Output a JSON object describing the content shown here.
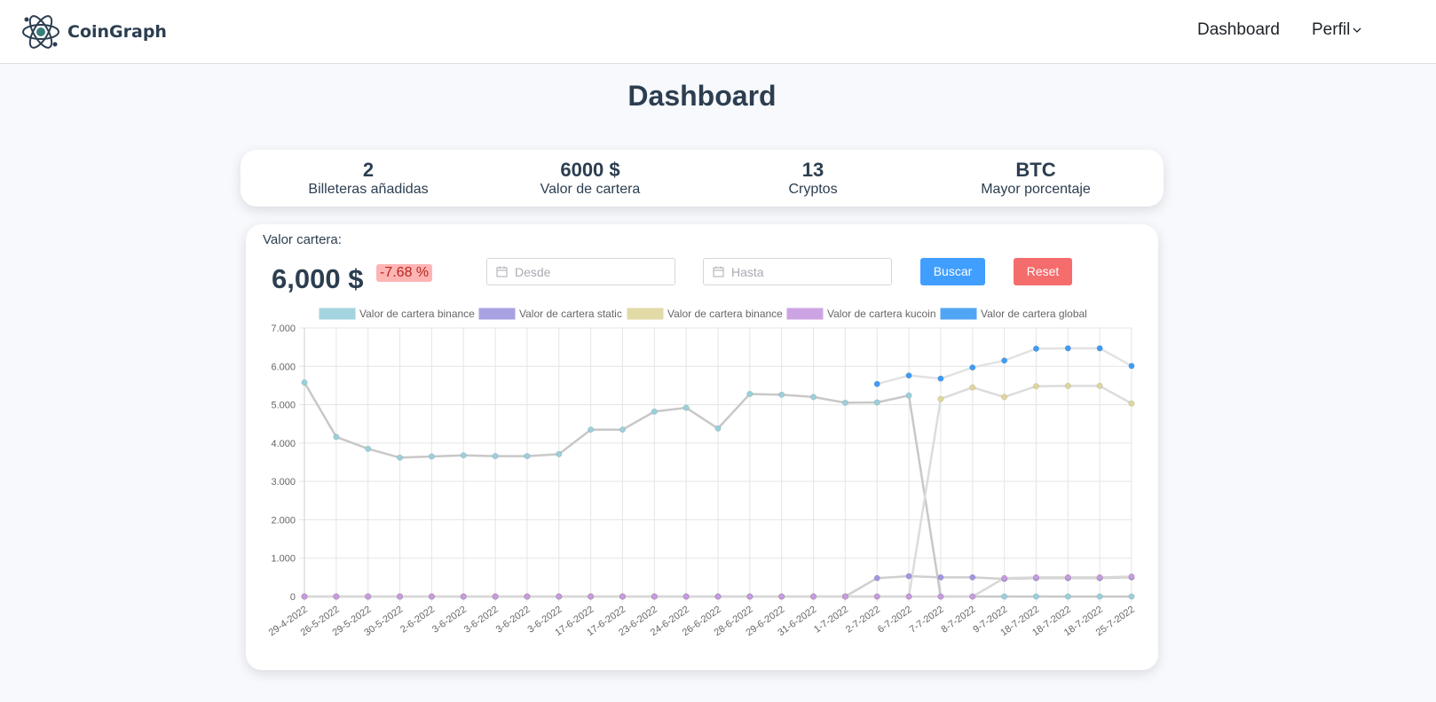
{
  "nav": {
    "brand": "CoinGraph",
    "dashboard": "Dashboard",
    "perfil": "Perfil"
  },
  "page": {
    "title": "Dashboard"
  },
  "stats": [
    {
      "value": "2",
      "label": "Billeteras añadidas"
    },
    {
      "value": "6000 $",
      "label": "Valor de cartera"
    },
    {
      "value": "13",
      "label": "Cryptos"
    },
    {
      "value": "BTC",
      "label": "Mayor porcentaje"
    }
  ],
  "wallet": {
    "label": "Valor cartera:",
    "value": "6,000 $",
    "change": "-7.68 %"
  },
  "filters": {
    "desde_placeholder": "Desde",
    "hasta_placeholder": "Hasta",
    "buscar": "Buscar",
    "reset": "Reset"
  },
  "chart_data": {
    "type": "line",
    "ylim": [
      0,
      7000
    ],
    "yticks": [
      0,
      1000,
      2000,
      3000,
      4000,
      5000,
      6000,
      7000
    ],
    "ytick_labels": [
      "0",
      "1.000",
      "2.000",
      "3.000",
      "4.000",
      "5.000",
      "6.000",
      "7.000"
    ],
    "categories": [
      "29-4-2022",
      "26-5-2022",
      "29-5-2022",
      "30-5-2022",
      "2-6-2022",
      "3-6-2022",
      "3-6-2022",
      "3-6-2022",
      "3-6-2022",
      "17-6-2022",
      "17-6-2022",
      "23-6-2022",
      "24-6-2022",
      "26-6-2022",
      "28-6-2022",
      "29-6-2022",
      "31-6-2022",
      "1-7-2022",
      "2-7-2022",
      "6-7-2022",
      "7-7-2022",
      "8-7-2022",
      "9-7-2022",
      "18-7-2022",
      "18-7-2022",
      "18-7-2022",
      "25-7-2022"
    ],
    "series": [
      {
        "name": "Valor de cartera binance",
        "color": "#9ad0dc",
        "values": [
          5580,
          4160,
          3850,
          3620,
          3650,
          3680,
          3660,
          3660,
          3710,
          4350,
          4350,
          4820,
          4920,
          4380,
          5280,
          5260,
          5200,
          5050,
          5060,
          5240,
          0,
          0,
          0,
          0,
          0,
          0,
          0
        ]
      },
      {
        "name": "Valor de cartera static",
        "color": "#9f98e0",
        "values": [
          0,
          0,
          0,
          0,
          0,
          0,
          0,
          0,
          0,
          0,
          0,
          0,
          0,
          0,
          0,
          0,
          0,
          0,
          480,
          530,
          500,
          500,
          460,
          480,
          480,
          480,
          500
        ]
      },
      {
        "name": "Valor de cartera binance",
        "color": "#dfd69e",
        "values": [
          0,
          0,
          0,
          0,
          0,
          0,
          0,
          0,
          0,
          0,
          0,
          0,
          0,
          0,
          0,
          0,
          0,
          0,
          0,
          0,
          5150,
          5450,
          5200,
          5480,
          5490,
          5490,
          5030
        ]
      },
      {
        "name": "Valor de cartera kucoin",
        "color": "#c89be0",
        "values": [
          0,
          0,
          0,
          0,
          0,
          0,
          0,
          0,
          0,
          0,
          0,
          0,
          0,
          0,
          0,
          0,
          0,
          0,
          0,
          0,
          0,
          0,
          480,
          500,
          500,
          500,
          520
        ]
      },
      {
        "name": "Valor de cartera global",
        "color": "#3f9cf5",
        "values": [
          null,
          null,
          null,
          null,
          null,
          null,
          null,
          null,
          null,
          null,
          null,
          null,
          null,
          null,
          null,
          null,
          null,
          null,
          5540,
          5760,
          5680,
          5970,
          6150,
          6460,
          6470,
          6470,
          6010
        ]
      }
    ]
  }
}
